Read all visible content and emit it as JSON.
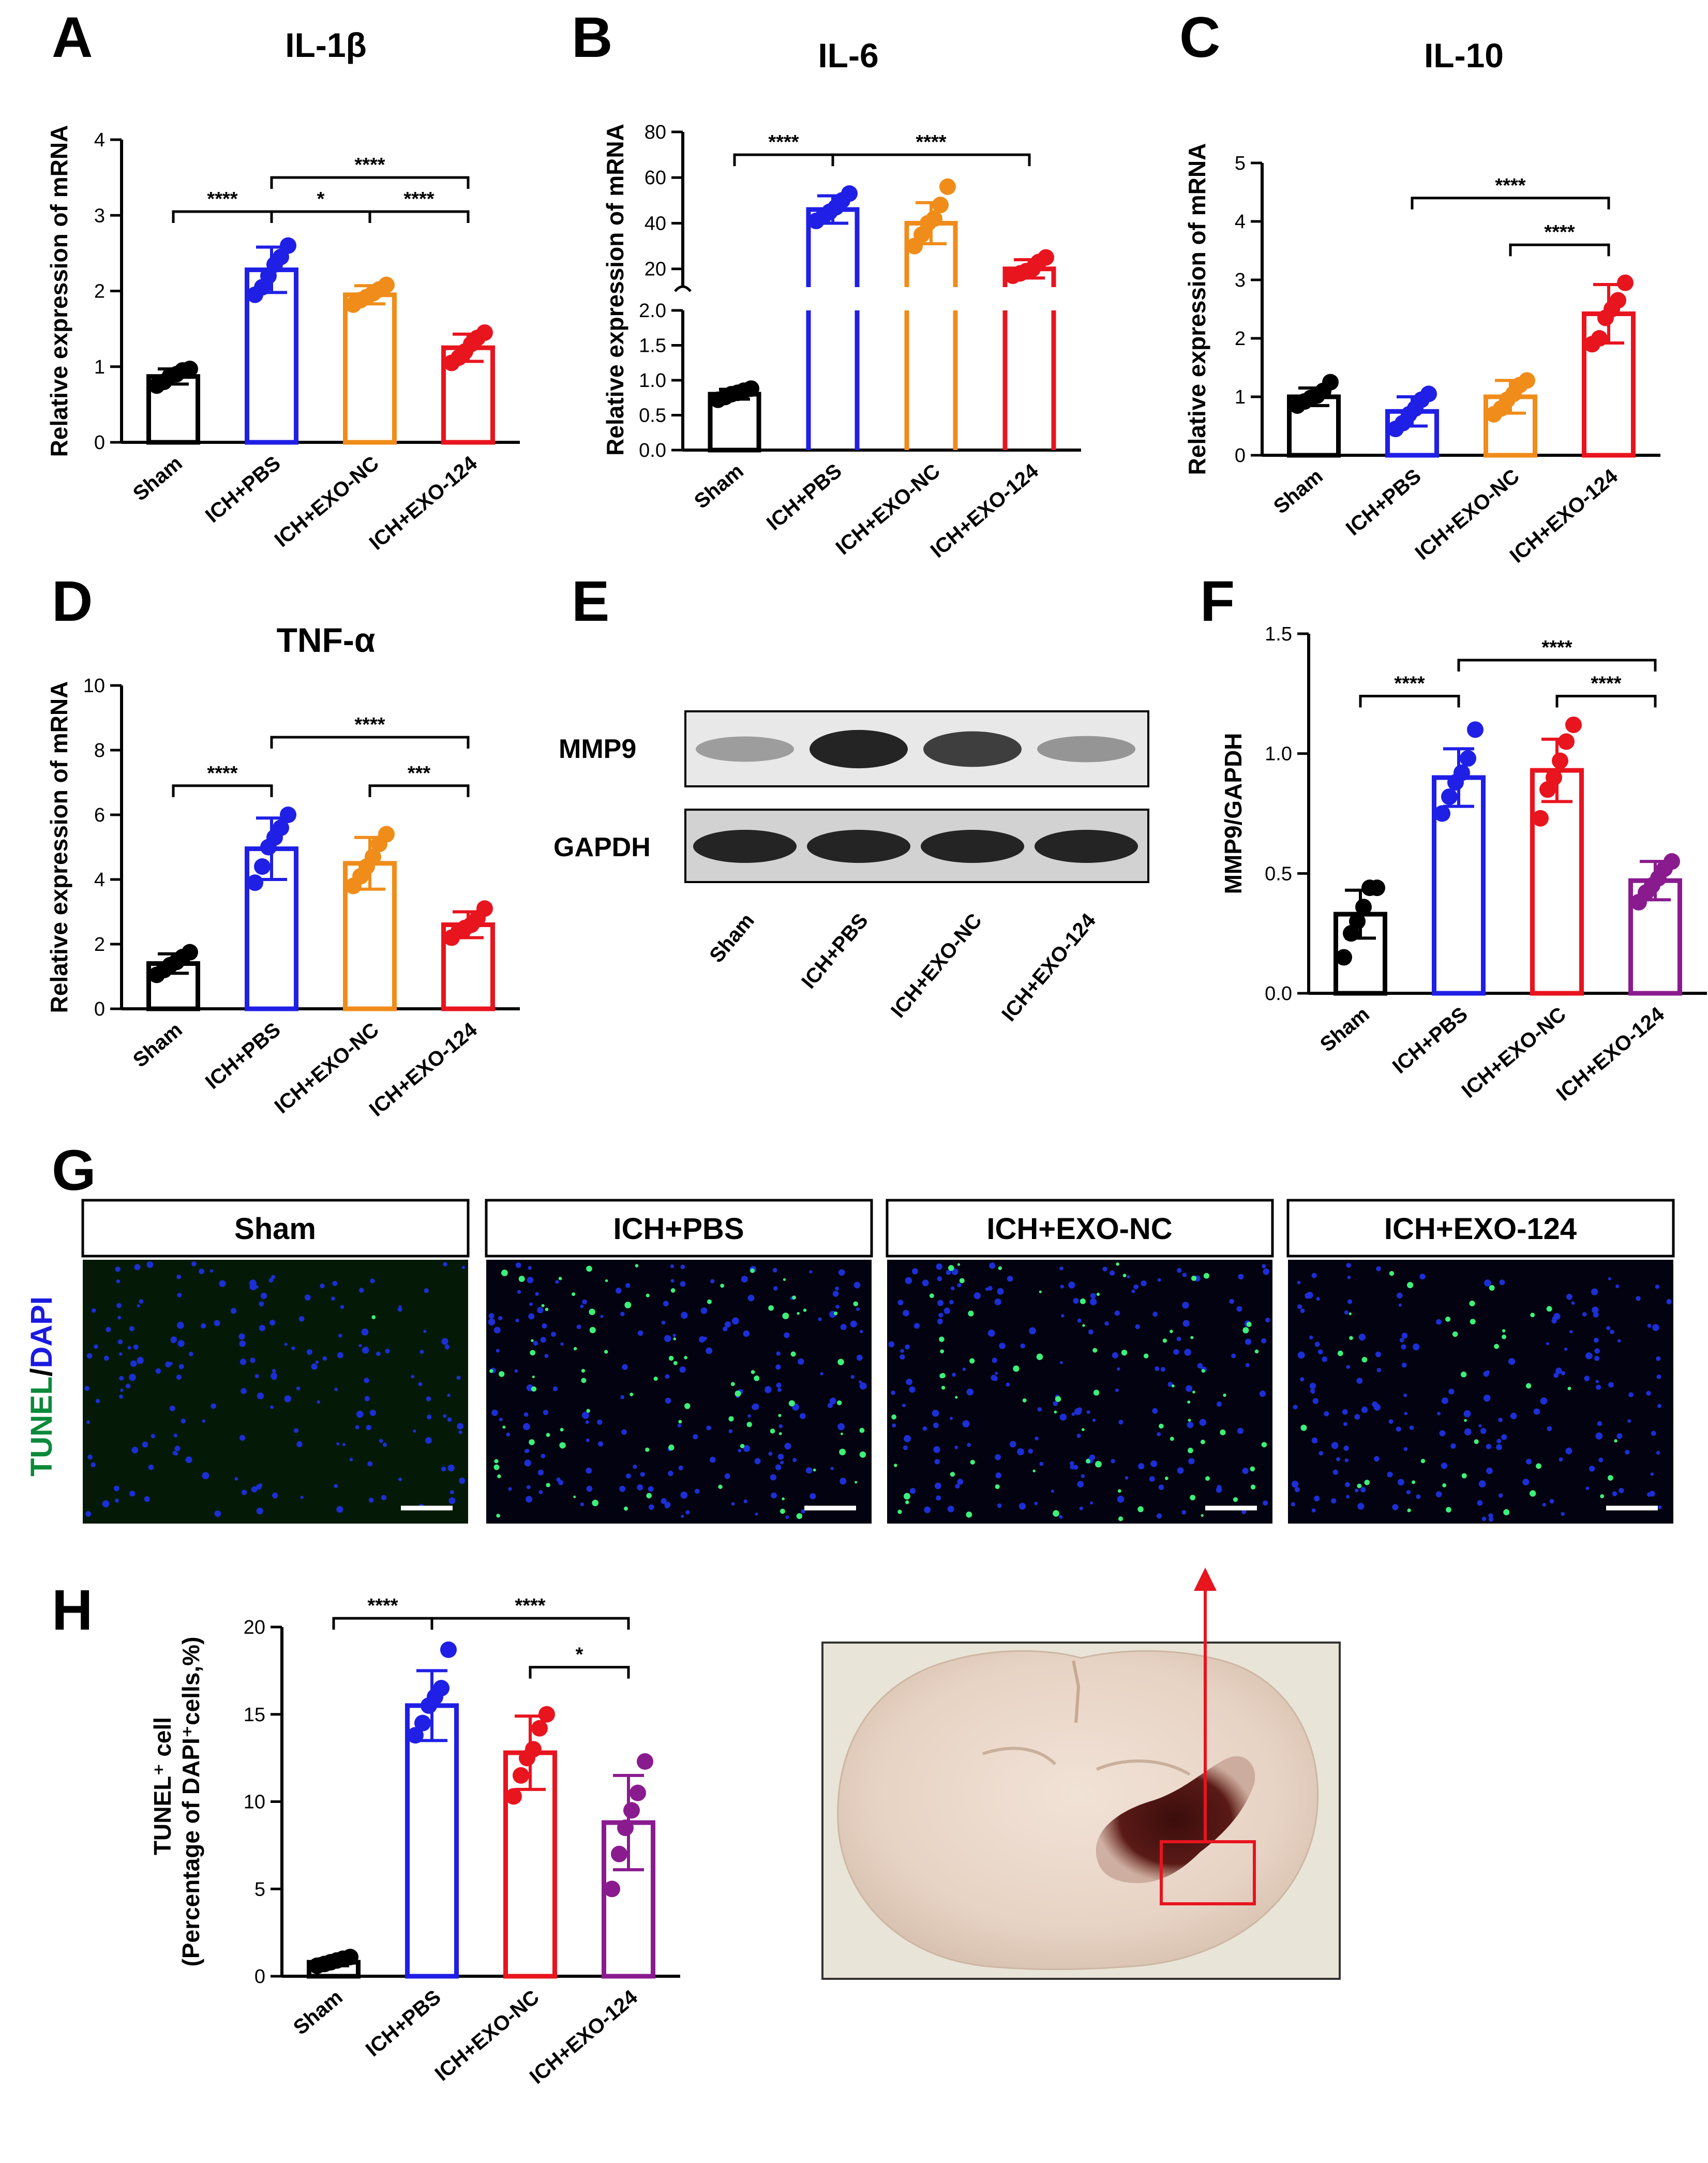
{
  "colors": {
    "Sham": "#000000",
    "ICH+PBS": "#1f1fe6",
    "ICH+EXO-NC_orange": "#f08c1a",
    "ICH+EXO-NC_red": "#e8141e",
    "ICH+EXO-124_red": "#e8141e",
    "ICH+EXO-124_purple": "#8a1b8f",
    "TUNEL": "#0a8a3a",
    "DAPI": "#1a1ae0",
    "arrow": "#e8141e"
  },
  "chart_data": [
    {
      "panel": "A",
      "type": "bar",
      "title": "IL-1β",
      "ylabel": "Relative expression of mRNA",
      "categories": [
        "Sham",
        "ICH+PBS",
        "ICH+EXO-NC",
        "ICH+EXO-124"
      ],
      "values": [
        0.87,
        2.28,
        1.95,
        1.25
      ],
      "errors": [
        0.1,
        0.3,
        0.12,
        0.18
      ],
      "points": [
        [
          0.75,
          0.8,
          0.88,
          0.9,
          0.95,
          0.97
        ],
        [
          1.95,
          2.05,
          2.2,
          2.35,
          2.45,
          2.6
        ],
        [
          1.82,
          1.88,
          1.92,
          1.97,
          2.02,
          2.08
        ],
        [
          1.05,
          1.12,
          1.2,
          1.3,
          1.38,
          1.45
        ]
      ],
      "ylim": [
        0,
        4
      ],
      "yticks": [
        "0",
        "1",
        "2",
        "3",
        "4"
      ],
      "significance": [
        {
          "from": 0,
          "to": 1,
          "label": "****",
          "y": 3.05
        },
        {
          "from": 1,
          "to": 2,
          "label": "*",
          "y": 3.05
        },
        {
          "from": 2,
          "to": 3,
          "label": "****",
          "y": 3.05
        },
        {
          "from": 1,
          "to": 3,
          "label": "****",
          "y": 3.5
        }
      ]
    },
    {
      "panel": "B",
      "type": "bar",
      "title": "IL-6",
      "ylabel": "Relative expression of mRNA",
      "categories": [
        "Sham",
        "ICH+PBS",
        "ICH+EXO-NC",
        "ICH+EXO-124"
      ],
      "values": [
        0.8,
        46,
        40,
        20
      ],
      "errors": [
        0.07,
        6,
        9,
        4
      ],
      "points": [
        [
          0.72,
          0.76,
          0.8,
          0.82,
          0.85,
          0.88
        ],
        [
          41,
          43,
          45,
          47,
          50,
          53
        ],
        [
          30,
          35,
          40,
          42,
          48,
          56
        ],
        [
          17,
          18,
          19,
          20,
          23,
          25
        ]
      ],
      "axis_break": {
        "lower_max": 2.0,
        "upper_min": 12,
        "upper_max": 80
      },
      "yticks_lower": [
        "0.0",
        "0.5",
        "1.0",
        "1.5",
        "2.0"
      ],
      "yticks_upper": [
        "20",
        "40",
        "60",
        "80"
      ],
      "significance": [
        {
          "from": 0,
          "to": 1,
          "label": "****",
          "y": 70
        },
        {
          "from": 1,
          "to": 3,
          "label": "****",
          "y": 70
        }
      ]
    },
    {
      "panel": "C",
      "type": "bar",
      "title": "IL-10",
      "ylabel": "Relative expression of mRNA",
      "categories": [
        "Sham",
        "ICH+PBS",
        "ICH+EXO-NC",
        "ICH+EXO-124"
      ],
      "values": [
        1.0,
        0.75,
        1.0,
        2.42
      ],
      "errors": [
        0.15,
        0.25,
        0.28,
        0.5
      ],
      "points": [
        [
          0.85,
          0.92,
          0.98,
          1.02,
          1.1,
          1.25
        ],
        [
          0.45,
          0.55,
          0.7,
          0.8,
          0.95,
          1.05
        ],
        [
          0.7,
          0.8,
          0.95,
          1.05,
          1.2,
          1.28
        ],
        [
          1.9,
          2.0,
          2.35,
          2.5,
          2.65,
          2.95
        ]
      ],
      "ylim": [
        0,
        5
      ],
      "yticks": [
        "0",
        "1",
        "2",
        "3",
        "4",
        "5"
      ],
      "significance": [
        {
          "from": 2,
          "to": 3,
          "label": "****",
          "y": 3.6
        },
        {
          "from": 1,
          "to": 3,
          "label": "****",
          "y": 4.4
        }
      ]
    },
    {
      "panel": "D",
      "type": "bar",
      "title": "TNF-α",
      "ylabel": "Relative expression of mRNA",
      "categories": [
        "Sham",
        "ICH+PBS",
        "ICH+EXO-NC",
        "ICH+EXO-124"
      ],
      "values": [
        1.4,
        4.95,
        4.5,
        2.6
      ],
      "errors": [
        0.3,
        0.95,
        0.8,
        0.4
      ],
      "points": [
        [
          1.05,
          1.2,
          1.35,
          1.45,
          1.6,
          1.75
        ],
        [
          3.9,
          4.4,
          5.0,
          5.3,
          5.6,
          6.0
        ],
        [
          3.8,
          4.1,
          4.4,
          4.7,
          5.1,
          5.4
        ],
        [
          2.2,
          2.4,
          2.5,
          2.6,
          2.8,
          3.1
        ]
      ],
      "ylim": [
        0,
        10
      ],
      "yticks": [
        "0",
        "2",
        "4",
        "6",
        "8",
        "10"
      ],
      "significance": [
        {
          "from": 0,
          "to": 1,
          "label": "****",
          "y": 6.9
        },
        {
          "from": 2,
          "to": 3,
          "label": "***",
          "y": 6.9
        },
        {
          "from": 1,
          "to": 3,
          "label": "****",
          "y": 8.4
        }
      ]
    },
    {
      "panel": "F",
      "type": "bar",
      "title": "",
      "ylabel": "MMP9/GAPDH",
      "categories": [
        "Sham",
        "ICH+PBS",
        "ICH+EXO-NC",
        "ICH+EXO-124"
      ],
      "values": [
        0.33,
        0.9,
        0.93,
        0.47
      ],
      "errors": [
        0.1,
        0.12,
        0.13,
        0.08
      ],
      "points": [
        [
          0.15,
          0.25,
          0.3,
          0.36,
          0.44,
          0.44
        ],
        [
          0.75,
          0.82,
          0.88,
          0.92,
          0.98,
          1.1
        ],
        [
          0.73,
          0.85,
          0.9,
          0.97,
          1.05,
          1.12
        ],
        [
          0.38,
          0.42,
          0.45,
          0.48,
          0.52,
          0.55
        ]
      ],
      "ylim": [
        0,
        1.5
      ],
      "yticks": [
        "0.0",
        "0.5",
        "1.0",
        "1.5"
      ],
      "significance": [
        {
          "from": 0,
          "to": 1,
          "label": "****",
          "y": 1.24
        },
        {
          "from": 2,
          "to": 3,
          "label": "****",
          "y": 1.24
        },
        {
          "from": 1,
          "to": 3,
          "label": "****",
          "y": 1.39
        }
      ]
    },
    {
      "panel": "H",
      "type": "bar",
      "title": "",
      "ylabel": "TUNEL⁺ cell",
      "ylabel2": "(Percentage of DAPI⁺cells,%)",
      "categories": [
        "Sham",
        "ICH+PBS",
        "ICH+EXO-NC",
        "ICH+EXO-124"
      ],
      "values": [
        0.8,
        15.5,
        12.8,
        8.8
      ],
      "errors": [
        0.2,
        2.0,
        2.1,
        2.7
      ],
      "points": [
        [
          0.6,
          0.7,
          0.8,
          0.9,
          1.0,
          1.1
        ],
        [
          13.8,
          14.5,
          15.5,
          16.0,
          16.5,
          18.7
        ],
        [
          10.3,
          11.5,
          12.5,
          13.0,
          14.2,
          15.0
        ],
        [
          5.0,
          7.0,
          8.5,
          9.5,
          10.5,
          12.3
        ]
      ],
      "ylim": [
        0,
        20
      ],
      "yticks": [
        "0",
        "5",
        "10",
        "15",
        "20"
      ],
      "significance": [
        {
          "from": 0,
          "to": 1,
          "label": "****",
          "y": 20.5
        },
        {
          "from": 1,
          "to": 3,
          "label": "****",
          "y": 20.5
        },
        {
          "from": 2,
          "to": 3,
          "label": "*",
          "y": 17.7
        }
      ]
    }
  ],
  "panel_labels": {
    "A": "A",
    "B": "B",
    "C": "C",
    "D": "D",
    "E": "E",
    "F": "F",
    "G": "G",
    "H": "H"
  },
  "western_blot": {
    "bands": [
      "MMP9",
      "GAPDH"
    ],
    "lanes": [
      "Sham",
      "ICH+PBS",
      "ICH+EXO-NC",
      "ICH+EXO-124"
    ],
    "intensity_MMP9": [
      0.25,
      0.95,
      0.8,
      0.3
    ],
    "intensity_GAPDH": [
      0.9,
      0.9,
      0.9,
      0.9
    ]
  },
  "tunel": {
    "groups": [
      "Sham",
      "ICH+PBS",
      "ICH+EXO-NC",
      "ICH+EXO-124"
    ],
    "stain_label_tunel": "TUNEL",
    "stain_label_sep": "/",
    "stain_label_dapi": "DAPI",
    "green_density": [
      0.01,
      0.7,
      0.6,
      0.3
    ]
  }
}
